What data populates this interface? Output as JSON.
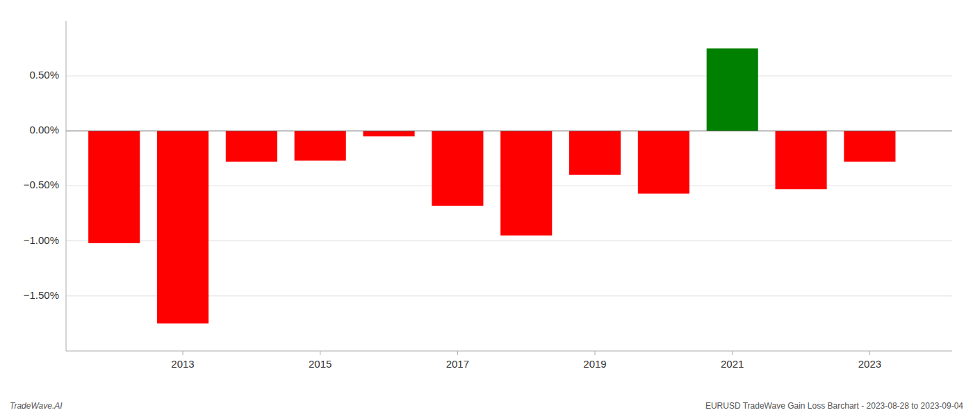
{
  "chart_data": {
    "type": "bar",
    "x": [
      2012,
      2013,
      2014,
      2015,
      2016,
      2017,
      2018,
      2019,
      2020,
      2021,
      2022,
      2023
    ],
    "values": [
      -1.02,
      -1.75,
      -0.28,
      -0.27,
      -0.05,
      -0.68,
      -0.95,
      -0.4,
      -0.57,
      0.75,
      -0.53,
      -0.28
    ],
    "colors": [
      "#ff0000",
      "#ff0000",
      "#ff0000",
      "#ff0000",
      "#ff0000",
      "#ff0000",
      "#ff0000",
      "#ff0000",
      "#ff0000",
      "#008000",
      "#ff0000",
      "#ff0000"
    ],
    "xlim": [
      2011.3,
      2024.2
    ],
    "xticks": [
      2013,
      2015,
      2017,
      2019,
      2021,
      2023
    ],
    "ylim": [
      -2.0,
      1.0
    ],
    "yticks": [
      {
        "value": -1.5,
        "label": "−1.50%"
      },
      {
        "value": -1.0,
        "label": "−1.00%"
      },
      {
        "value": -0.5,
        "label": "−0.50%"
      },
      {
        "value": 0.0,
        "label": "0.00%"
      },
      {
        "value": 0.5,
        "label": "0.50%"
      }
    ],
    "grid": true,
    "annotations": [
      "TradeWave.AI",
      "EURUSD TradeWave Gain Loss Barchart - 2023-08-28 to 2023-09-04"
    ]
  }
}
